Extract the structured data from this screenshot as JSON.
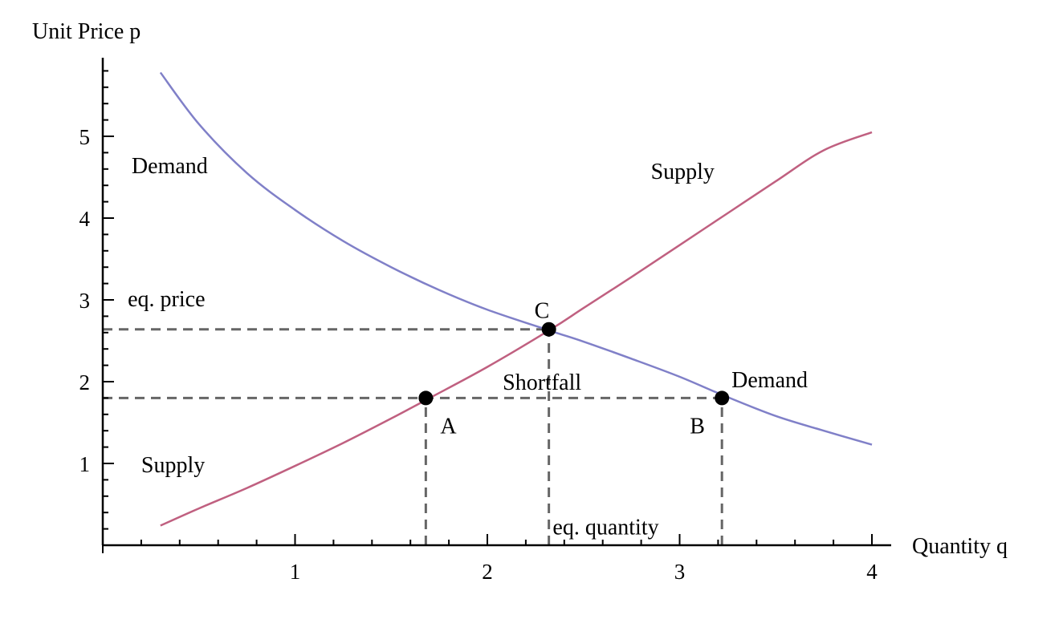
{
  "chart_data": {
    "type": "line",
    "xlabel": "Quantity q",
    "ylabel": "Unit Price p",
    "xlim": [
      0,
      4.1
    ],
    "ylim": [
      0,
      5.85
    ],
    "x_ticks": [
      1,
      2,
      3,
      4
    ],
    "y_ticks": [
      1,
      2,
      3,
      4,
      5
    ],
    "x_minor_step": 0.2,
    "y_minor_step": 0.2,
    "grid": false,
    "series": [
      {
        "name": "Demand",
        "color": "#8080c8",
        "x": [
          0.3,
          0.5,
          0.75,
          1.0,
          1.25,
          1.5,
          1.75,
          2.0,
          2.33,
          2.5,
          2.75,
          3.0,
          3.23,
          3.5,
          3.75,
          4.0
        ],
        "y": [
          5.78,
          5.15,
          4.55,
          4.1,
          3.72,
          3.4,
          3.12,
          2.88,
          2.62,
          2.49,
          2.28,
          2.06,
          1.83,
          1.58,
          1.4,
          1.23
        ]
      },
      {
        "name": "Supply",
        "color": "#c06080",
        "x": [
          0.3,
          0.5,
          0.75,
          1.0,
          1.25,
          1.5,
          1.7,
          2.0,
          2.33,
          2.5,
          2.75,
          3.0,
          3.25,
          3.5,
          3.75,
          4.0
        ],
        "y": [
          0.24,
          0.45,
          0.7,
          0.97,
          1.25,
          1.55,
          1.8,
          2.18,
          2.64,
          2.9,
          3.28,
          3.67,
          4.06,
          4.45,
          4.83,
          5.05
        ]
      }
    ],
    "points": [
      {
        "label": "A",
        "x": 1.68,
        "y": 1.8
      },
      {
        "label": "B",
        "x": 3.22,
        "y": 1.8
      },
      {
        "label": "C",
        "x": 2.32,
        "y": 2.64
      }
    ],
    "reference_lines": [
      {
        "type": "h",
        "y": 2.64,
        "x_from": 0,
        "x_to": 2.32
      },
      {
        "type": "h",
        "y": 1.8,
        "x_from": 0,
        "x_to": 3.22
      },
      {
        "type": "v",
        "x": 1.68,
        "y_from": 0,
        "y_to": 1.8
      },
      {
        "type": "v",
        "x": 2.32,
        "y_from": 0,
        "y_to": 2.64
      },
      {
        "type": "v",
        "x": 3.22,
        "y_from": 0,
        "y_to": 1.8
      }
    ],
    "annotations": [
      {
        "text": "Demand",
        "x": 0.15,
        "y": 4.55
      },
      {
        "text": "Supply",
        "x": 2.85,
        "y": 4.48
      },
      {
        "text": "eq. price",
        "x": 0.13,
        "y": 2.92
      },
      {
        "text": "Shortfall",
        "x": 2.08,
        "y": 1.9
      },
      {
        "text": "Demand",
        "x": 3.27,
        "y": 1.93
      },
      {
        "text": "Supply",
        "x": 0.2,
        "y": 0.89
      },
      {
        "text": "eq. quantity",
        "x": 2.34,
        "y": 0.13
      }
    ]
  }
}
